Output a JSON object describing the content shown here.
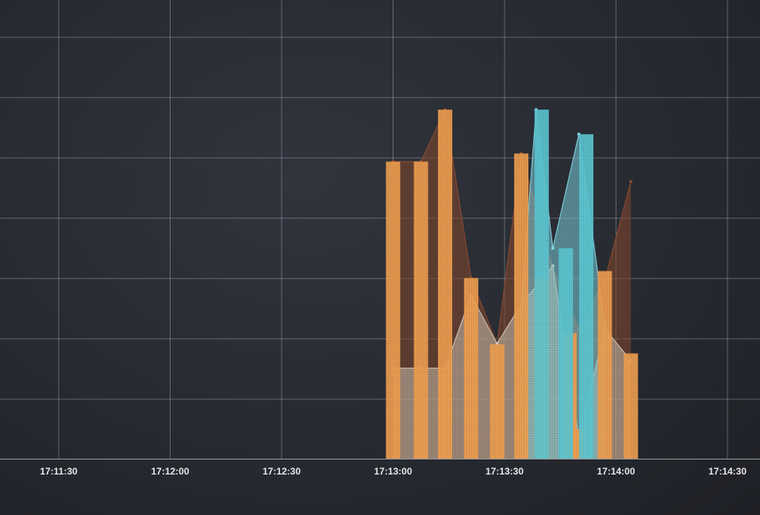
{
  "chart_data": {
    "type": "bar",
    "title": "",
    "xlabel": "",
    "ylabel": "",
    "grid": true,
    "x_tick_labels": [
      "17:11:30",
      "17:12:00",
      "17:12:30",
      "17:13:00",
      "17:13:30",
      "17:14:00",
      "17:14:30"
    ],
    "x_range_seconds": [
      -5.5,
      154
    ],
    "y_range": [
      0,
      100
    ],
    "series": [
      {
        "kind": "area",
        "color": "#8a4a30",
        "points": [
          [
            90,
            84.7
          ],
          [
            97.5,
            84.7
          ],
          [
            104,
            99.5
          ],
          [
            111,
            51.5
          ],
          [
            118,
            32.6
          ],
          [
            124.5,
            87.0
          ],
          [
            133,
            54.0
          ],
          [
            140,
            37.0
          ],
          [
            147,
            51.0
          ],
          [
            154,
            79.0
          ]
        ]
      },
      {
        "kind": "area",
        "color": "#cfc4b3",
        "points": [
          [
            90,
            25.8
          ],
          [
            97.5,
            25.8
          ],
          [
            104,
            25.8
          ],
          [
            111,
            46.5
          ],
          [
            118,
            32.8
          ],
          [
            124.5,
            44.0
          ],
          [
            133,
            55.0
          ],
          [
            140,
            6.0
          ],
          [
            147,
            37.0
          ],
          [
            154,
            28.0
          ]
        ]
      },
      {
        "kind": "area",
        "color": "#7fd3e0",
        "points": [
          [
            124.5,
            44.0
          ],
          [
            128.5,
            99.5
          ],
          [
            133,
            60.0
          ],
          [
            140,
            92.5
          ],
          [
            147,
            38.0
          ]
        ]
      },
      {
        "kind": "bar",
        "color": "#f0a050",
        "bars": [
          [
            90,
            84.7
          ],
          [
            97.5,
            84.7
          ],
          [
            104,
            99.5
          ],
          [
            111,
            51.5
          ],
          [
            118,
            32.6
          ],
          [
            124.5,
            87.0
          ],
          [
            130,
            51.5
          ],
          [
            137.5,
            35.8
          ],
          [
            140,
            8.5
          ],
          [
            147,
            53.5
          ],
          [
            154,
            30.0
          ]
        ]
      },
      {
        "kind": "bar",
        "color": "#5cc8d4",
        "bars": [
          [
            130,
            99.5
          ],
          [
            136.5,
            60.0
          ],
          [
            142,
            92.5
          ]
        ]
      }
    ]
  }
}
